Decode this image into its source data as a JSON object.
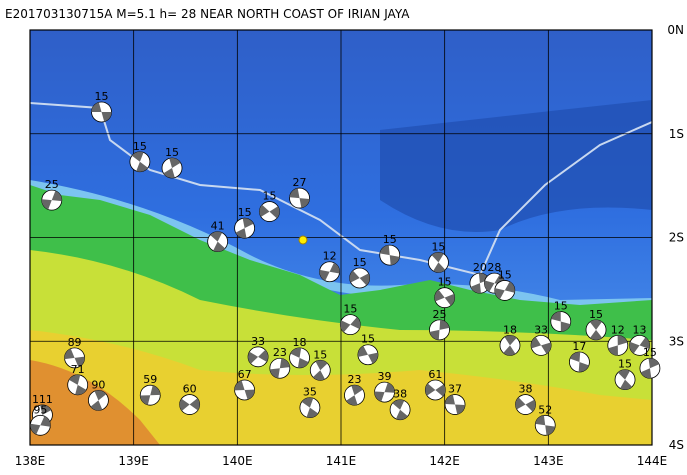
{
  "title": "E201703130715A M=5.1 h= 28 NEAR NORTH COAST OF IRIAN JAYA",
  "map": {
    "lonlim": [
      138,
      144
    ],
    "latlim": [
      0,
      -4
    ],
    "lon_ticks": [
      {
        "value": 138,
        "label": "138E"
      },
      {
        "value": 139,
        "label": "139E"
      },
      {
        "value": 140,
        "label": "140E"
      },
      {
        "value": 141,
        "label": "141E"
      },
      {
        "value": 142,
        "label": "142E"
      },
      {
        "value": 143,
        "label": "143E"
      },
      {
        "value": 144,
        "label": "144E"
      }
    ],
    "lat_ticks": [
      {
        "value": 0,
        "label": "0N"
      },
      {
        "value": -1,
        "label": "1S"
      },
      {
        "value": -2,
        "label": "2S"
      },
      {
        "value": -3,
        "label": "3S"
      },
      {
        "value": -4,
        "label": "4S"
      }
    ],
    "events": [
      {
        "lon": 138.69,
        "lat": -0.79,
        "depth": 15
      },
      {
        "lon": 139.06,
        "lat": -1.27,
        "depth": 15
      },
      {
        "lon": 139.37,
        "lat": -1.33,
        "depth": 15
      },
      {
        "lon": 138.21,
        "lat": -1.64,
        "depth": 25
      },
      {
        "lon": 140.31,
        "lat": -1.75,
        "depth": 15
      },
      {
        "lon": 140.6,
        "lat": -1.62,
        "depth": 27
      },
      {
        "lon": 139.81,
        "lat": -2.04,
        "depth": 41
      },
      {
        "lon": 140.07,
        "lat": -1.91,
        "depth": 15
      },
      {
        "lon": 140.89,
        "lat": -2.33,
        "depth": 12
      },
      {
        "lon": 141.18,
        "lat": -2.39,
        "depth": 15
      },
      {
        "lon": 141.47,
        "lat": -2.17,
        "depth": 15
      },
      {
        "lon": 141.94,
        "lat": -2.24,
        "depth": 15
      },
      {
        "lon": 142.34,
        "lat": -2.44,
        "depth": 20
      },
      {
        "lon": 142.48,
        "lat": -2.44,
        "depth": 28
      },
      {
        "lon": 142.0,
        "lat": -2.58,
        "depth": 15
      },
      {
        "lon": 143.12,
        "lat": -2.81,
        "depth": 15
      },
      {
        "lon": 143.46,
        "lat": -2.89,
        "depth": 15
      },
      {
        "lon": 143.67,
        "lat": -3.04,
        "depth": 12
      },
      {
        "lon": 143.88,
        "lat": -3.04,
        "depth": 13
      },
      {
        "lon": 142.93,
        "lat": -3.04,
        "depth": 33
      },
      {
        "lon": 143.3,
        "lat": -3.2,
        "depth": 17
      },
      {
        "lon": 142.63,
        "lat": -3.04,
        "depth": 18
      },
      {
        "lon": 141.95,
        "lat": -2.89,
        "depth": 25
      },
      {
        "lon": 141.09,
        "lat": -2.84,
        "depth": 15
      },
      {
        "lon": 141.26,
        "lat": -3.13,
        "depth": 15
      },
      {
        "lon": 140.6,
        "lat": -3.16,
        "depth": 18
      },
      {
        "lon": 140.8,
        "lat": -3.28,
        "depth": 15
      },
      {
        "lon": 140.41,
        "lat": -3.26,
        "depth": 23
      },
      {
        "lon": 140.2,
        "lat": -3.15,
        "depth": 33
      },
      {
        "lon": 138.43,
        "lat": -3.16,
        "depth": 89
      },
      {
        "lon": 138.46,
        "lat": -3.42,
        "depth": 71
      },
      {
        "lon": 138.66,
        "lat": -3.57,
        "depth": 90
      },
      {
        "lon": 139.16,
        "lat": -3.52,
        "depth": 59
      },
      {
        "lon": 139.54,
        "lat": -3.61,
        "depth": 60
      },
      {
        "lon": 140.07,
        "lat": -3.47,
        "depth": 67
      },
      {
        "lon": 140.7,
        "lat": -3.64,
        "depth": 35
      },
      {
        "lon": 141.13,
        "lat": -3.52,
        "depth": 23
      },
      {
        "lon": 141.42,
        "lat": -3.49,
        "depth": 39
      },
      {
        "lon": 141.91,
        "lat": -3.47,
        "depth": 61
      },
      {
        "lon": 142.1,
        "lat": -3.61,
        "depth": 37
      },
      {
        "lon": 141.57,
        "lat": -3.66,
        "depth": 38
      },
      {
        "lon": 138.12,
        "lat": -3.71,
        "depth": 111
      },
      {
        "lon": 138.1,
        "lat": -3.81,
        "depth": 95
      },
      {
        "lon": 142.78,
        "lat": -3.61,
        "depth": 38
      },
      {
        "lon": 142.97,
        "lat": -3.81,
        "depth": 52
      },
      {
        "lon": 143.74,
        "lat": -3.37,
        "depth": 15
      },
      {
        "lon": 143.98,
        "lat": -3.26,
        "depth": 15
      },
      {
        "lon": 142.58,
        "lat": -2.51,
        "depth": 15
      }
    ]
  }
}
